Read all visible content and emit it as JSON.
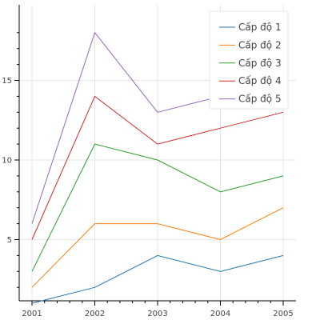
{
  "chart_data": {
    "type": "line",
    "title": "",
    "xlabel": "",
    "ylabel": "",
    "x": [
      "2001",
      "2002",
      "2003",
      "2004",
      "2005"
    ],
    "xlim": [
      2001,
      2005
    ],
    "ylim": [
      0,
      18
    ],
    "yticks": [
      5,
      10,
      15
    ],
    "grid": true,
    "legend_position": "top-right",
    "series": [
      {
        "name": "Cấp độ 1",
        "color": "#1f77b4",
        "values": [
          1,
          2,
          4,
          3,
          4
        ]
      },
      {
        "name": "Cấp độ 2",
        "color": "#ff7f0e",
        "values": [
          2,
          6,
          6,
          5,
          7
        ]
      },
      {
        "name": "Cấp độ 3",
        "color": "#2ca02c",
        "values": [
          3,
          11,
          10,
          8,
          9
        ]
      },
      {
        "name": "Cấp độ 4",
        "color": "#d62728",
        "values": [
          5,
          14,
          11,
          12,
          13
        ]
      },
      {
        "name": "Cấp độ 5",
        "color": "#9467bd",
        "values": [
          6,
          18,
          13,
          14,
          15
        ]
      }
    ]
  }
}
